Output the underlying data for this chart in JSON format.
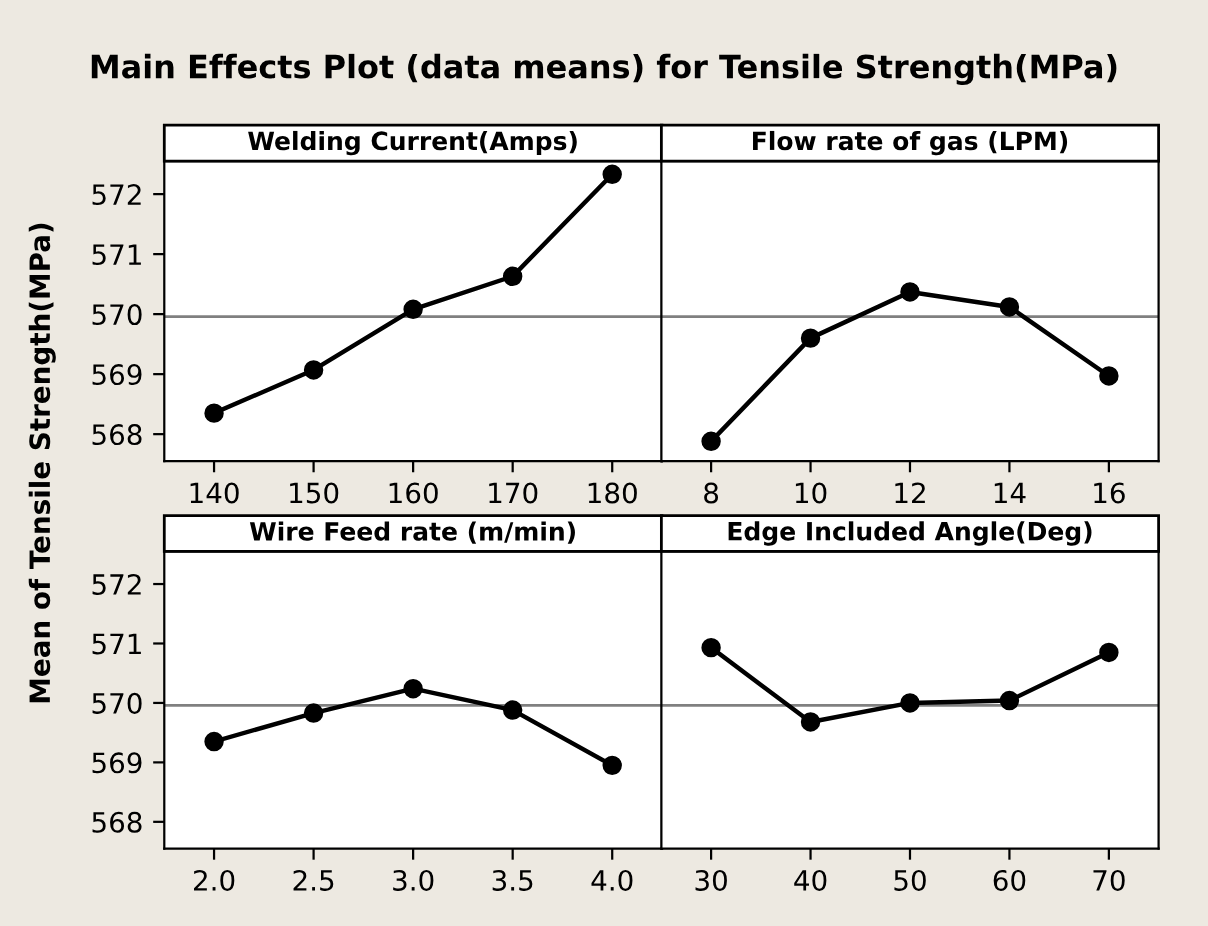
{
  "chart_data": [
    {
      "type": "line",
      "title": "Main Effects Plot (data means) for Tensile Strength(MPa)",
      "subtitle": "Welding Current(Amps)",
      "ylabel": "Mean of Tensile Strength(MPa)",
      "x": [
        140,
        150,
        160,
        170,
        180
      ],
      "series": [
        {
          "color": "#000000",
          "values": [
            568.35,
            569.07,
            570.08,
            570.63,
            572.33
          ]
        }
      ],
      "xlim": [
        135,
        185
      ],
      "xticks": [
        140,
        150,
        160,
        170,
        180
      ],
      "ylim": [
        567.55,
        572.55
      ],
      "yticks": [
        568,
        569,
        570,
        571,
        572
      ],
      "ref_lines": [
        {
          "axis": "y",
          "value": 569.96,
          "color": "#808080"
        }
      ],
      "marker": "circle",
      "line_style": "solid",
      "grid": false,
      "legend": false
    },
    {
      "type": "line",
      "subtitle": "Flow rate of gas (LPM)",
      "x": [
        8,
        10,
        12,
        14,
        16
      ],
      "series": [
        {
          "color": "#000000",
          "values": [
            567.88,
            569.6,
            570.37,
            570.12,
            568.97
          ]
        }
      ],
      "xlim": [
        7,
        17
      ],
      "xticks": [
        8,
        10,
        12,
        14,
        16
      ],
      "ylim": [
        567.55,
        572.55
      ],
      "tick_labels": "x",
      "ref_lines": [
        {
          "axis": "y",
          "value": 569.96,
          "color": "#808080"
        }
      ],
      "marker": "circle",
      "line_style": "solid",
      "grid": false,
      "legend": false
    },
    {
      "type": "line",
      "subtitle": "Wire Feed rate (m/min)",
      "x": [
        2.0,
        2.5,
        3.0,
        3.5,
        4.0
      ],
      "series": [
        {
          "color": "#000000",
          "values": [
            569.35,
            569.83,
            570.24,
            569.88,
            568.95
          ]
        }
      ],
      "xlim": [
        1.75,
        4.25
      ],
      "xticks": [
        {
          "value": 2.0,
          "label": "2.0"
        },
        {
          "value": 2.5,
          "label": "2.5"
        },
        {
          "value": 3.0,
          "label": "3.0"
        },
        {
          "value": 3.5,
          "label": "3.5"
        },
        {
          "value": 4.0,
          "label": "4.0"
        }
      ],
      "ylim": [
        567.55,
        572.55
      ],
      "yticks": [
        568,
        569,
        570,
        571,
        572
      ],
      "ref_lines": [
        {
          "axis": "y",
          "value": 569.96,
          "color": "#808080"
        }
      ],
      "marker": "circle",
      "line_style": "solid",
      "grid": false,
      "legend": false
    },
    {
      "type": "line",
      "subtitle": "Edge Included Angle(Deg)",
      "x": [
        30,
        40,
        50,
        60,
        70
      ],
      "series": [
        {
          "color": "#000000",
          "values": [
            570.93,
            569.68,
            570.0,
            570.04,
            570.85
          ]
        }
      ],
      "xlim": [
        25,
        75
      ],
      "xticks": [
        30,
        40,
        50,
        60,
        70
      ],
      "ylim": [
        567.55,
        572.55
      ],
      "tick_labels": "x",
      "ref_lines": [
        {
          "axis": "y",
          "value": 569.96,
          "color": "#808080"
        }
      ],
      "marker": "circle",
      "line_style": "solid",
      "grid": false,
      "legend": false
    }
  ]
}
